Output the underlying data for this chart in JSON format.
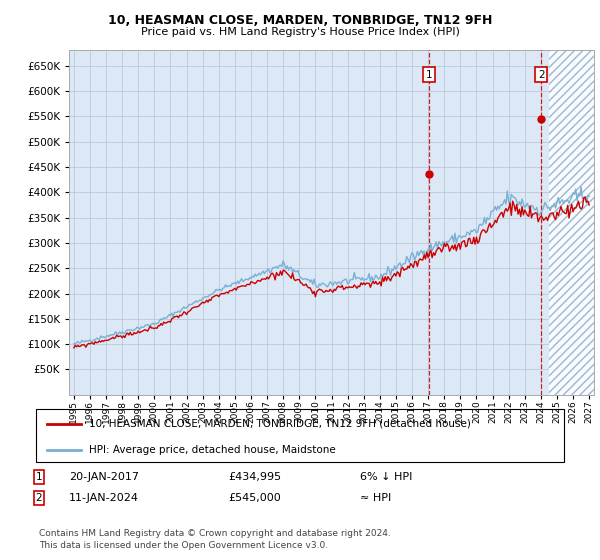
{
  "title": "10, HEASMAN CLOSE, MARDEN, TONBRIDGE, TN12 9FH",
  "subtitle": "Price paid vs. HM Land Registry's House Price Index (HPI)",
  "ylim": [
    0,
    680000
  ],
  "yticks": [
    50000,
    100000,
    150000,
    200000,
    250000,
    300000,
    350000,
    400000,
    450000,
    500000,
    550000,
    600000,
    650000
  ],
  "xlim_start": 1994.7,
  "xlim_end": 2027.3,
  "sale1_x": 2017.05,
  "sale1_y": 434995,
  "sale2_x": 2024.03,
  "sale2_y": 545000,
  "future_start": 2024.5,
  "sale1_label": "20-JAN-2017",
  "sale1_price": "£434,995",
  "sale1_hpi": "6% ↓ HPI",
  "sale2_label": "11-JAN-2024",
  "sale2_price": "£545,000",
  "sale2_hpi": "≈ HPI",
  "legend_line1": "10, HEASMAN CLOSE, MARDEN, TONBRIDGE, TN12 9FH (detached house)",
  "legend_line2": "HPI: Average price, detached house, Maidstone",
  "footer": "Contains HM Land Registry data © Crown copyright and database right 2024.\nThis data is licensed under the Open Government Licence v3.0.",
  "hpi_color": "#7ab0d4",
  "price_color": "#cc0000",
  "bg_color": "#dce8f5",
  "grid_color": "#b0c4d8",
  "dashed_color": "#cc0000",
  "title_fontsize": 9,
  "subtitle_fontsize": 8
}
